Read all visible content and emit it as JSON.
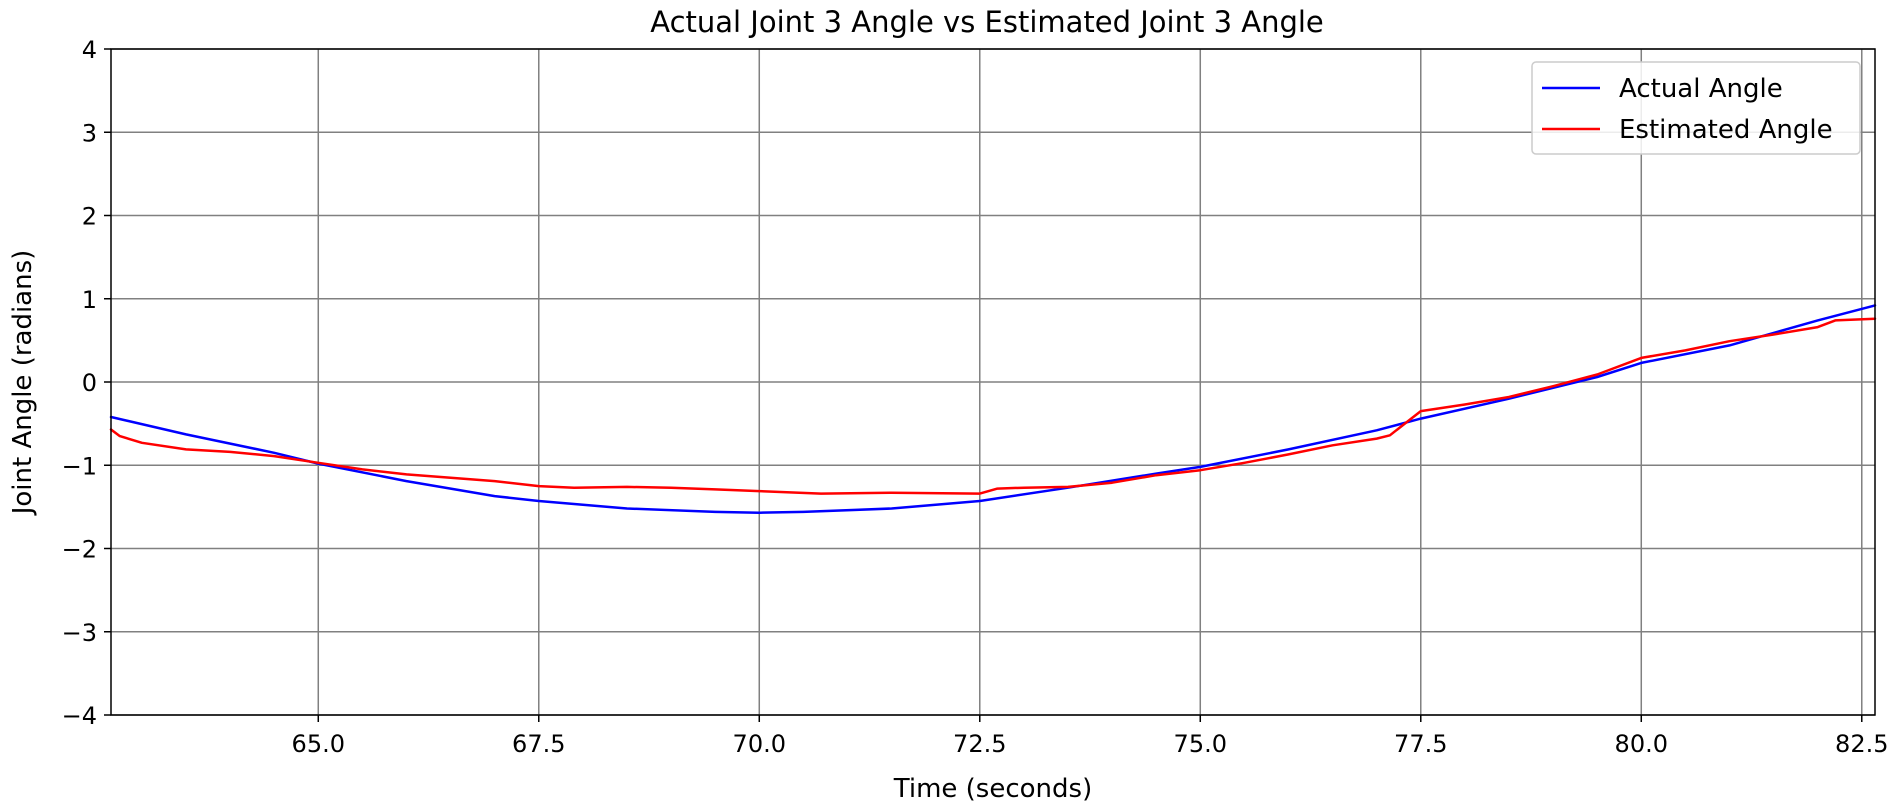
{
  "chart_data": {
    "type": "line",
    "title": "Actual Joint 3 Angle vs Estimated Joint 3 Angle",
    "xlabel": "Time (seconds)",
    "ylabel": "Joint Angle (radians)",
    "xlim": [
      62.65,
      82.65
    ],
    "ylim": [
      -4,
      4
    ],
    "xticks": [
      65.0,
      67.5,
      70.0,
      72.5,
      75.0,
      77.5,
      80.0,
      82.5
    ],
    "xtick_labels": [
      "65.0",
      "67.5",
      "70.0",
      "72.5",
      "75.0",
      "77.5",
      "80.0",
      "82.5"
    ],
    "yticks": [
      -4,
      -3,
      -2,
      -1,
      0,
      1,
      2,
      3,
      4
    ],
    "ytick_labels": [
      "−4",
      "−3",
      "−2",
      "−1",
      "0",
      "1",
      "2",
      "3",
      "4"
    ],
    "grid": true,
    "legend_position": "top-right",
    "series": [
      {
        "name": "Actual Angle",
        "color": "#0000ff",
        "x": [
          62.65,
          63.5,
          64.5,
          65.0,
          66.0,
          67.0,
          67.5,
          68.5,
          69.5,
          70.0,
          70.5,
          71.5,
          72.5,
          73.5,
          74.5,
          75.0,
          76.0,
          77.0,
          77.5,
          78.5,
          79.5,
          80.0,
          81.0,
          82.0,
          82.65
        ],
        "y": [
          -0.42,
          -0.63,
          -0.85,
          -0.98,
          -1.19,
          -1.37,
          -1.43,
          -1.52,
          -1.56,
          -1.57,
          -1.56,
          -1.52,
          -1.43,
          -1.27,
          -1.1,
          -1.02,
          -0.81,
          -0.58,
          -0.44,
          -0.2,
          0.06,
          0.23,
          0.44,
          0.74,
          0.92
        ]
      },
      {
        "name": "Estimated Angle",
        "color": "#ff0000",
        "x": [
          62.65,
          62.75,
          63.0,
          63.5,
          64.0,
          64.5,
          65.0,
          65.5,
          66.0,
          66.5,
          67.0,
          67.5,
          67.9,
          68.5,
          69.0,
          69.5,
          70.0,
          70.7,
          71.5,
          72.5,
          72.7,
          73.0,
          73.5,
          74.0,
          74.5,
          75.0,
          75.5,
          76.0,
          76.5,
          77.0,
          77.15,
          77.5,
          78.0,
          78.5,
          79.0,
          79.5,
          80.0,
          80.5,
          81.0,
          81.5,
          82.0,
          82.2,
          82.65
        ],
        "y": [
          -0.57,
          -0.65,
          -0.73,
          -0.81,
          -0.84,
          -0.89,
          -0.97,
          -1.05,
          -1.11,
          -1.15,
          -1.19,
          -1.25,
          -1.27,
          -1.26,
          -1.27,
          -1.29,
          -1.31,
          -1.34,
          -1.33,
          -1.34,
          -1.28,
          -1.27,
          -1.26,
          -1.21,
          -1.12,
          -1.06,
          -0.97,
          -0.87,
          -0.76,
          -0.68,
          -0.64,
          -0.35,
          -0.27,
          -0.18,
          -0.05,
          0.09,
          0.29,
          0.38,
          0.49,
          0.57,
          0.66,
          0.74,
          0.76
        ]
      }
    ]
  }
}
